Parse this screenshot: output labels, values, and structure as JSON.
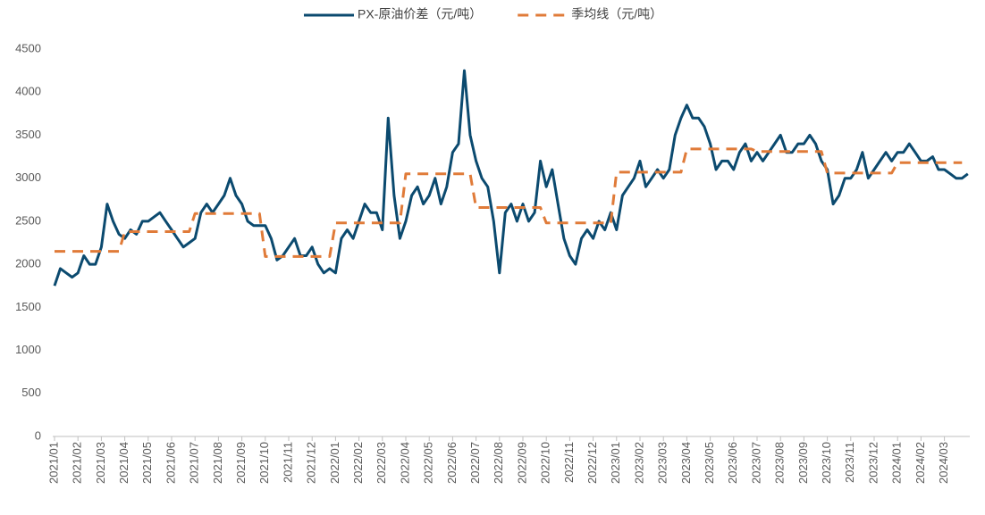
{
  "chart_data": {
    "type": "line",
    "categories": [
      "2021/01",
      null,
      null,
      null,
      "2021/02",
      null,
      null,
      null,
      "2021/03",
      null,
      null,
      null,
      "2021/04",
      null,
      null,
      null,
      "2021/05",
      null,
      null,
      null,
      "2021/06",
      null,
      null,
      null,
      "2021/07",
      null,
      null,
      null,
      "2021/08",
      null,
      null,
      null,
      "2021/09",
      null,
      null,
      null,
      "2021/10",
      null,
      null,
      null,
      "2021/11",
      null,
      null,
      null,
      "2021/12",
      null,
      null,
      null,
      "2022/01",
      null,
      null,
      null,
      "2022/02",
      null,
      null,
      null,
      "2022/03",
      null,
      null,
      null,
      "2022/04",
      null,
      null,
      null,
      "2022/05",
      null,
      null,
      null,
      "2022/06",
      null,
      null,
      null,
      "2022/07",
      null,
      null,
      null,
      "2022/08",
      null,
      null,
      null,
      "2022/09",
      null,
      null,
      null,
      "2022/10",
      null,
      null,
      null,
      "2022/11",
      null,
      null,
      null,
      "2022/12",
      null,
      null,
      null,
      "2023/01",
      null,
      null,
      null,
      "2023/02",
      null,
      null,
      null,
      "2023/03",
      null,
      null,
      null,
      "2023/04",
      null,
      null,
      null,
      "2023/05",
      null,
      null,
      null,
      "2023/06",
      null,
      null,
      null,
      "2023/07",
      null,
      null,
      null,
      "2023/08",
      null,
      null,
      null,
      "2023/09",
      null,
      null,
      null,
      "2023/10",
      null,
      null,
      null,
      "2023/11",
      null,
      null,
      null,
      "2023/12",
      null,
      null,
      null,
      "2024/01",
      null,
      null,
      null,
      "2024/02",
      null,
      null,
      null,
      "2024/03",
      null,
      null,
      null,
      null
    ],
    "series": [
      {
        "name": "PX-原油价差（元/吨）",
        "color": "#0b4a6f",
        "dash": false,
        "values": [
          1750,
          1950,
          1900,
          1850,
          1900,
          2100,
          2000,
          2000,
          2200,
          2700,
          2500,
          2350,
          2300,
          2400,
          2350,
          2500,
          2500,
          2550,
          2600,
          2500,
          2400,
          2300,
          2200,
          2250,
          2300,
          2600,
          2700,
          2600,
          2700,
          2800,
          3000,
          2800,
          2700,
          2500,
          2450,
          2450,
          2450,
          2300,
          2050,
          2100,
          2200,
          2300,
          2100,
          2100,
          2200,
          2000,
          1900,
          1950,
          1900,
          2300,
          2400,
          2300,
          2500,
          2700,
          2600,
          2600,
          2400,
          3700,
          2800,
          2300,
          2500,
          2800,
          2900,
          2700,
          2800,
          3000,
          2700,
          2900,
          3300,
          3400,
          4250,
          3500,
          3200,
          3000,
          2900,
          2500,
          1900,
          2600,
          2700,
          2500,
          2700,
          2500,
          2600,
          3200,
          2900,
          3100,
          2700,
          2300,
          2100,
          2000,
          2300,
          2400,
          2300,
          2500,
          2400,
          2600,
          2400,
          2800,
          2900,
          3000,
          3200,
          2900,
          3000,
          3100,
          3000,
          3100,
          3500,
          3700,
          3850,
          3700,
          3700,
          3600,
          3400,
          3100,
          3200,
          3200,
          3100,
          3300,
          3400,
          3200,
          3300,
          3200,
          3300,
          3400,
          3500,
          3300,
          3300,
          3400,
          3400,
          3500,
          3400,
          3200,
          3100,
          2700,
          2800,
          3000,
          3000,
          3100,
          3300,
          3000,
          3100,
          3200,
          3300,
          3200,
          3300,
          3300,
          3400,
          3300,
          3200,
          3200,
          3250,
          3100,
          3100,
          3050,
          3000,
          3000,
          3050
        ]
      },
      {
        "name": "季均线（元/吨）",
        "color": "#e07b39",
        "dash": true,
        "values": [
          2150,
          2150,
          2150,
          2150,
          2150,
          2150,
          2150,
          2150,
          2150,
          2150,
          2150,
          2150,
          2380,
          2380,
          2380,
          2380,
          2380,
          2380,
          2380,
          2380,
          2380,
          2380,
          2380,
          2380,
          2590,
          2590,
          2590,
          2590,
          2590,
          2590,
          2590,
          2590,
          2590,
          2590,
          2590,
          2590,
          2090,
          2090,
          2090,
          2090,
          2090,
          2090,
          2090,
          2090,
          2090,
          2090,
          2090,
          2090,
          2480,
          2480,
          2480,
          2480,
          2480,
          2480,
          2480,
          2480,
          2480,
          2480,
          2480,
          2480,
          3050,
          3050,
          3050,
          3050,
          3050,
          3050,
          3050,
          3050,
          3050,
          3050,
          3050,
          3050,
          2660,
          2660,
          2660,
          2660,
          2660,
          2660,
          2660,
          2660,
          2660,
          2660,
          2660,
          2660,
          2480,
          2480,
          2480,
          2480,
          2480,
          2480,
          2480,
          2480,
          2480,
          2480,
          2480,
          2480,
          3070,
          3070,
          3070,
          3070,
          3070,
          3070,
          3070,
          3070,
          3070,
          3070,
          3070,
          3070,
          3340,
          3340,
          3340,
          3340,
          3340,
          3340,
          3340,
          3340,
          3340,
          3340,
          3340,
          3340,
          3310,
          3310,
          3310,
          3310,
          3310,
          3310,
          3310,
          3310,
          3310,
          3310,
          3310,
          3310,
          3060,
          3060,
          3060,
          3060,
          3060,
          3060,
          3060,
          3060,
          3060,
          3060,
          3060,
          3060,
          3180,
          3180,
          3180,
          3180,
          3180,
          3180,
          3180,
          3180,
          3180,
          3180,
          3180,
          3180,
          null
        ]
      }
    ],
    "ylim": [
      0,
      4500
    ],
    "yticks": [
      0,
      500,
      1000,
      1500,
      2000,
      2500,
      3000,
      3500,
      4000,
      4500
    ],
    "grid": false,
    "legend": "top"
  }
}
